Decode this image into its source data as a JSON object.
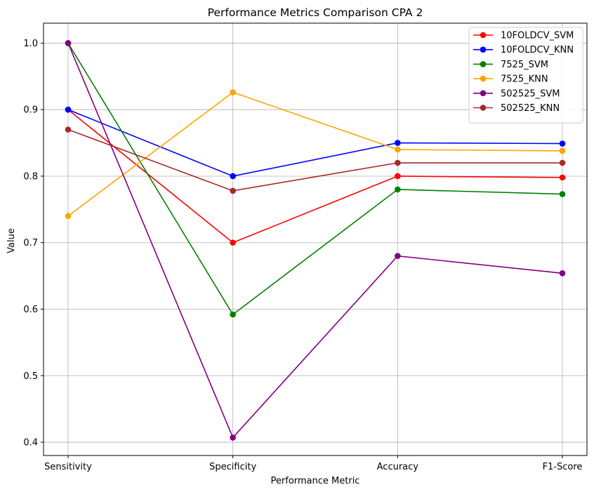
{
  "chart_data": {
    "type": "line",
    "title": "Performance Metrics Comparison CPA 2",
    "xlabel": "Performance Metric",
    "ylabel": "Value",
    "categories": [
      "Sensitivity",
      "Specificity",
      "Accuracy",
      "F1-Score"
    ],
    "ylim": [
      0.38,
      1.03
    ],
    "yticks": [
      0.4,
      0.5,
      0.6,
      0.7,
      0.8,
      0.9,
      1.0
    ],
    "ytick_labels": [
      "0.4",
      "0.5",
      "0.6",
      "0.7",
      "0.8",
      "0.9",
      "1.0"
    ],
    "grid": true,
    "legend_position": "top-right",
    "series": [
      {
        "name": "10FOLDCV_SVM",
        "color": "#ff0000",
        "values": [
          0.9,
          0.7,
          0.8,
          0.798
        ]
      },
      {
        "name": "10FOLDCV_KNN",
        "color": "#0000ff",
        "values": [
          0.9,
          0.8,
          0.85,
          0.849
        ]
      },
      {
        "name": "7525_SVM",
        "color": "#008000",
        "values": [
          1.0,
          0.592,
          0.78,
          0.773
        ]
      },
      {
        "name": "7525_KNN",
        "color": "#ffa500",
        "values": [
          0.74,
          0.926,
          0.84,
          0.838
        ]
      },
      {
        "name": "502525_SVM",
        "color": "#800080",
        "values": [
          1.0,
          0.407,
          0.68,
          0.654
        ]
      },
      {
        "name": "502525_KNN",
        "color": "#a52a2a",
        "values": [
          0.87,
          0.778,
          0.82,
          0.82
        ]
      }
    ]
  }
}
